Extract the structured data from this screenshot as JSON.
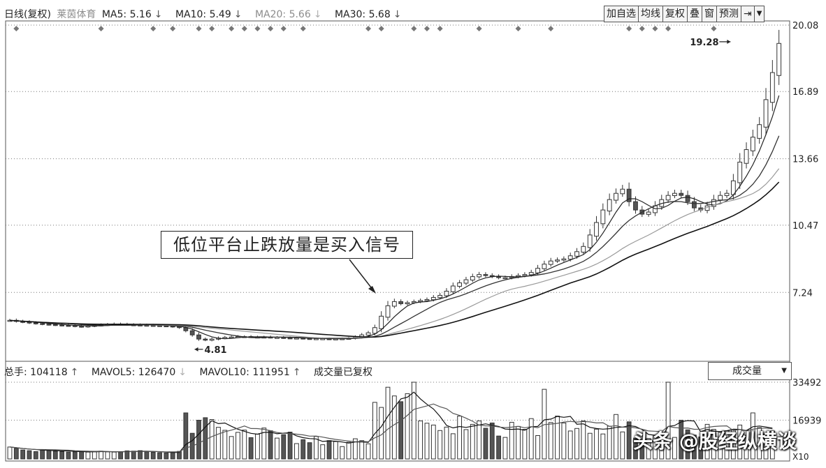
{
  "header": {
    "period_stock": "日线(复权)",
    "stock_name": "莱茵体育",
    "ma": [
      {
        "label": "MA5: 5.16",
        "arrow": "↓",
        "dim": false
      },
      {
        "label": "MA10: 5.49",
        "arrow": "↓",
        "dim": false
      },
      {
        "label": "MA20: 5.66",
        "arrow": "↓",
        "dim": true
      },
      {
        "label": "MA30: 5.68",
        "arrow": "↓",
        "dim": false
      }
    ]
  },
  "toolbar": {
    "add_watch": "加自选",
    "ma_line": "均线",
    "restore_rights": "复权",
    "overlay": "叠",
    "window": "窗",
    "forecast": "预测",
    "jump": "⇥",
    "more": "▼"
  },
  "volume_header": {
    "total": "总手: 104118",
    "total_arrow": "↑",
    "mavol5": "MAVOL5: 126470",
    "mavol5_arrow": "↓",
    "mavol10": "MAVOL10: 111951",
    "mavol10_arrow": "↑",
    "note": "成交量已复权",
    "selector": "成交量",
    "selector_caret": "▼"
  },
  "annotation": "低位平台止跌放量是买入信号",
  "watermark": "头条 @股经纵横谈",
  "colors": {
    "up": "#ffffff",
    "down": "#555555",
    "grid": "#777777",
    "text": "#222222"
  },
  "chart_data": [
    {
      "type": "candlestick",
      "title": "",
      "y_axis_ticks": [
        "20.08",
        "16.89",
        "13.66",
        "10.47",
        "7.24"
      ],
      "ylim": [
        4.0,
        20.08
      ],
      "annotations": [
        {
          "label": "19.28",
          "x_index": 111,
          "value": 19.28,
          "kind": "high"
        },
        {
          "label": "4.81",
          "x_index": 29,
          "value": 4.81,
          "kind": "low"
        }
      ],
      "close_approx": [
        5.9,
        5.85,
        5.82,
        5.78,
        5.75,
        5.72,
        5.7,
        5.68,
        5.66,
        5.65,
        5.62,
        5.6,
        5.63,
        5.66,
        5.68,
        5.7,
        5.72,
        5.71,
        5.69,
        5.68,
        5.67,
        5.66,
        5.65,
        5.64,
        5.63,
        5.6,
        5.55,
        5.4,
        5.2,
        5.0,
        4.95,
        5.0,
        5.05,
        5.08,
        5.1,
        5.12,
        5.12,
        5.1,
        5.1,
        5.1,
        5.08,
        5.08,
        5.06,
        5.05,
        5.05,
        5.03,
        5.02,
        5.02,
        5.02,
        5.01,
        5.01,
        5.02,
        5.04,
        5.1,
        5.2,
        5.3,
        5.55,
        6.1,
        6.6,
        6.8,
        6.7,
        6.75,
        6.8,
        6.85,
        6.9,
        7.0,
        7.1,
        7.3,
        7.55,
        7.7,
        7.85,
        8.0,
        8.1,
        8.05,
        8.0,
        7.95,
        7.95,
        8.0,
        8.05,
        8.1,
        8.2,
        8.4,
        8.6,
        8.75,
        8.8,
        8.85,
        9.0,
        9.2,
        9.45,
        10.0,
        10.6,
        11.2,
        11.7,
        12.0,
        12.2,
        11.6,
        11.2,
        11.0,
        11.1,
        11.4,
        11.7,
        11.9,
        12.0,
        11.9,
        11.6,
        11.3,
        11.2,
        11.4,
        11.7,
        11.9,
        12.0,
        12.6,
        13.5,
        14.1,
        14.7,
        15.3,
        16.5,
        17.8,
        19.2
      ],
      "markers_diamond_top": "daily event markers along top row",
      "moving_averages": [
        "MA5",
        "MA10",
        "MA20",
        "MA30"
      ]
    },
    {
      "type": "bar",
      "title": "",
      "y_axis_ticks": [
        "33492",
        "16939"
      ],
      "y_axis_unit_label": "X10",
      "ylim": [
        0,
        33492
      ],
      "series": [
        {
          "name": "MAVOL5",
          "kind": "line"
        },
        {
          "name": "MAVOL10",
          "kind": "line"
        }
      ],
      "volume_approx": [
        5200,
        4600,
        3900,
        3600,
        3200,
        4100,
        3800,
        3400,
        3200,
        3000,
        3100,
        3300,
        3000,
        3200,
        3400,
        3100,
        3000,
        3200,
        3500,
        3400,
        3600,
        3100,
        2900,
        2700,
        2600,
        2800,
        3300,
        20100,
        11200,
        16900,
        18000,
        17200,
        13800,
        12500,
        9800,
        11600,
        12600,
        9300,
        10800,
        13500,
        12300,
        9100,
        10600,
        11700,
        6700,
        8400,
        7100,
        9800,
        6200,
        8000,
        7600,
        5400,
        7300,
        8800,
        8000,
        6600,
        24700,
        22500,
        31300,
        27500,
        25000,
        28500,
        33492,
        16600,
        15600,
        14800,
        12400,
        13900,
        11000,
        18700,
        12800,
        15100,
        16600,
        13400,
        15700,
        10000,
        9400,
        16000,
        14200,
        12900,
        17600,
        10200,
        30400,
        15900,
        18700,
        15700,
        12200,
        13300,
        16600,
        11200,
        13000,
        10900,
        14300,
        19400,
        11800,
        16200,
        9100,
        7400,
        8900,
        10000,
        11200,
        33492,
        9400,
        16900,
        12700,
        10400,
        9600,
        15100,
        12900,
        11600,
        12300,
        12900,
        14800,
        10300,
        20100,
        13700,
        10900,
        12200
      ]
    }
  ]
}
